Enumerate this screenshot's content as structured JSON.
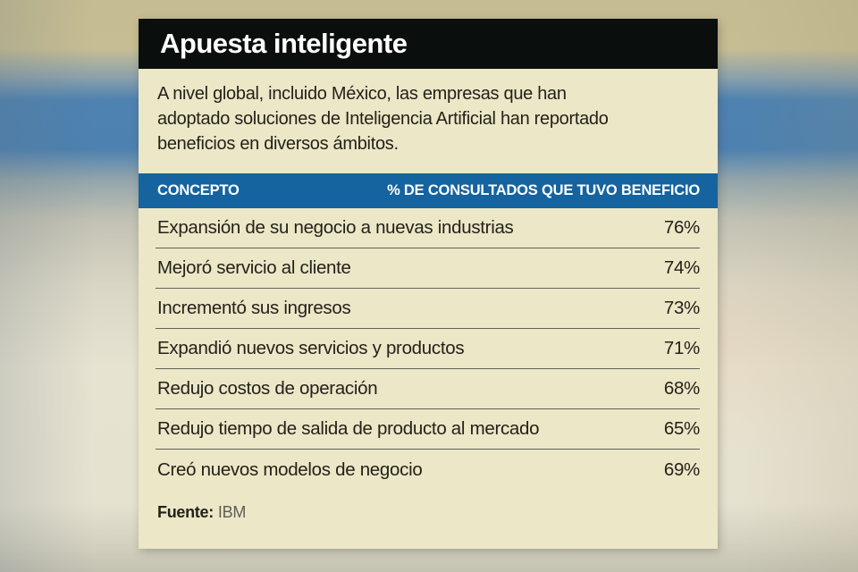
{
  "card": {
    "title": "Apuesta inteligente",
    "intro_lines": [
      "A nivel global, incluido México, las empresas que han",
      "adoptado soluciones de Inteligencia Artificial han reportado",
      "beneficios en diversos ámbitos."
    ],
    "table": {
      "headers": {
        "concept": "CONCEPTO",
        "percent": "% DE CONSULTADOS QUE TUVO BENEFICIO"
      },
      "rows": [
        {
          "label": "Expansión de su negocio a nuevas industrias",
          "value": "76%"
        },
        {
          "label": "Mejoró servicio al cliente",
          "value": "74%"
        },
        {
          "label": "Incrementó sus ingresos",
          "value": "73%"
        },
        {
          "label": "Expandió nuevos servicios y productos",
          "value": "71%"
        },
        {
          "label": "Redujo costos de operación",
          "value": "68%"
        },
        {
          "label": "Redujo tiempo de salida de producto al mercado",
          "value": "65%"
        },
        {
          "label": "Creó nuevos modelos de negocio",
          "value": "69%"
        }
      ]
    },
    "source": {
      "label": "Fuente:",
      "value": "IBM"
    }
  },
  "colors": {
    "title_bar_bg": "#0a0e0d",
    "title_text": "#ffffff",
    "card_bg": "#ece7c7",
    "table_header_bg": "#15639f",
    "table_header_text": "#ffffff",
    "body_text": "#23221a",
    "divider": "#62625a",
    "source_value_text": "#5e5e55",
    "backdrop_blue_band": "#4e82b1",
    "backdrop_tan_band": "#c6bc91"
  },
  "chart_data": {
    "type": "table",
    "title": "Apuesta inteligente",
    "subtitle": "A nivel global, incluido México, las empresas que han adoptado soluciones de Inteligencia Artificial han reportado beneficios en diversos ámbitos.",
    "columns": [
      "CONCEPTO",
      "% DE CONSULTADOS QUE TUVO BENEFICIO"
    ],
    "categories": [
      "Expansión de su negocio a nuevas industrias",
      "Mejoró servicio al cliente",
      "Incrementó sus ingresos",
      "Expandió nuevos servicios y productos",
      "Redujo costos de operación",
      "Redujo tiempo de salida de producto al mercado",
      "Creó nuevos modelos de negocio"
    ],
    "values": [
      76,
      74,
      73,
      71,
      68,
      65,
      69
    ],
    "unit": "%",
    "source": "IBM"
  }
}
